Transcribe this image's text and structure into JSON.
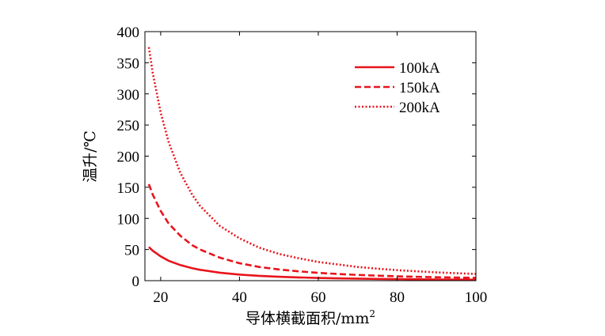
{
  "chart_data": {
    "type": "line",
    "xlabel": "导体横截面积/mm",
    "xlabel_sup": "2",
    "ylabel": "温升/℃",
    "xlim": [
      16,
      100
    ],
    "ylim": [
      0,
      400
    ],
    "xticks": [
      20,
      40,
      60,
      80,
      100
    ],
    "yticks": [
      0,
      50,
      100,
      150,
      200,
      250,
      300,
      350,
      400
    ],
    "grid": false,
    "legend_position": "top-right",
    "line_color": "#e8141c",
    "series": [
      {
        "name": "100kA",
        "dash": "solid",
        "x": [
          17,
          18,
          20,
          22,
          25,
          28,
          30,
          35,
          40,
          45,
          50,
          55,
          60,
          65,
          70,
          75,
          80,
          85,
          90,
          95,
          100
        ],
        "y": [
          54,
          48,
          39,
          32,
          25,
          20,
          17.4,
          12.8,
          9.8,
          7.7,
          6.3,
          5.2,
          4.4,
          3.7,
          3.2,
          2.8,
          2.5,
          2.2,
          1.9,
          1.7,
          1.6
        ]
      },
      {
        "name": "150kA",
        "dash": "dashed",
        "x": [
          17,
          18,
          20,
          22,
          25,
          28,
          30,
          35,
          40,
          45,
          50,
          55,
          60,
          65,
          70,
          75,
          80,
          85,
          90,
          95,
          100
        ],
        "y": [
          155,
          138,
          112,
          92,
          72,
          57,
          50,
          37,
          28,
          22,
          18,
          15,
          12.5,
          10.7,
          9.2,
          8,
          7,
          6.2,
          5.5,
          5,
          4.5
        ]
      },
      {
        "name": "200kA",
        "dash": "dotted",
        "x": [
          17,
          18,
          20,
          22,
          25,
          28,
          30,
          35,
          40,
          45,
          50,
          55,
          60,
          65,
          70,
          75,
          80,
          85,
          90,
          95,
          100
        ],
        "y": [
          375,
          333,
          270,
          223,
          173,
          138,
          120,
          88,
          68,
          53,
          43,
          36,
          30,
          26,
          22,
          19.2,
          16.9,
          15,
          13.3,
          12,
          10.8
        ]
      }
    ]
  }
}
